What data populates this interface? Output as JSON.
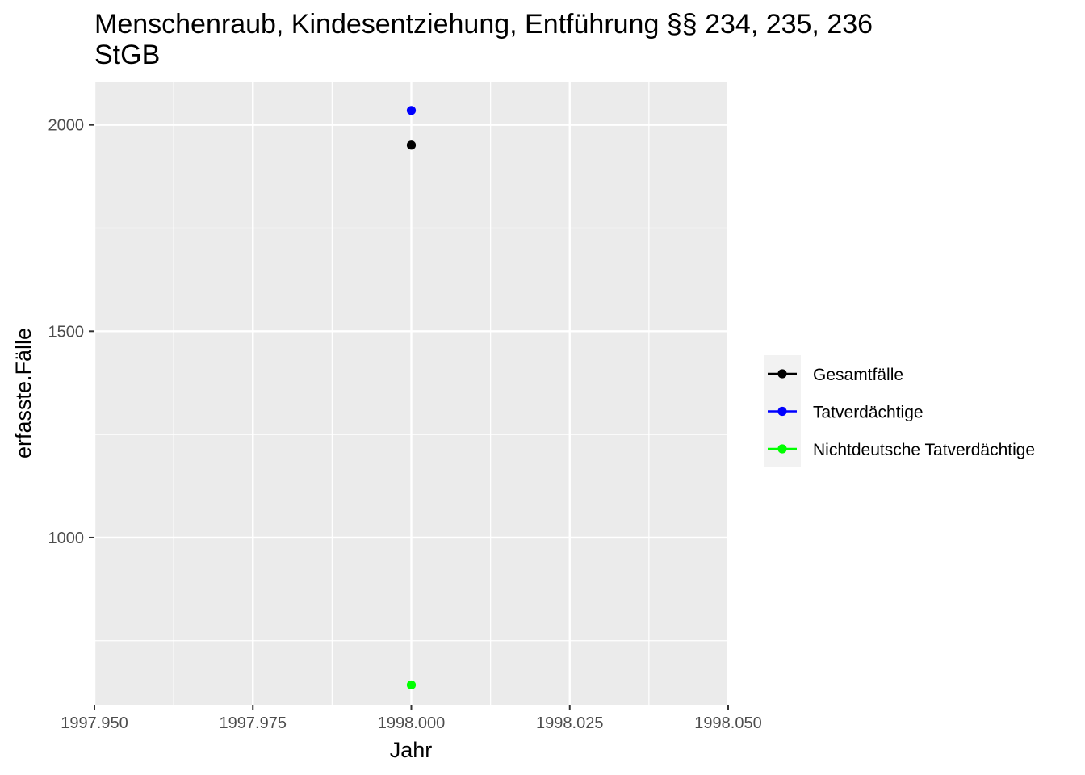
{
  "chart_data": {
    "type": "scatter",
    "title_lines": [
      "Menschenraub, Kindesentziehung, Entführung §§ 234, 235, 236",
      "StGB"
    ],
    "xlabel": "Jahr",
    "ylabel": "erfasste.Fälle",
    "xlim": [
      1997.95,
      1998.05
    ],
    "ylim": [
      595,
      2105
    ],
    "x_ticks": [
      1997.95,
      1997.975,
      1998.0,
      1998.025,
      1998.05
    ],
    "x_tick_labels": [
      "1997.950",
      "1997.975",
      "1998.000",
      "1998.025",
      "1998.050"
    ],
    "y_ticks": [
      1000,
      1500,
      2000
    ],
    "y_tick_labels": [
      "1000",
      "1500",
      "2000"
    ],
    "grid": true,
    "legend_position": "right",
    "series": [
      {
        "name": "Gesamtfälle",
        "color": "#000000",
        "points": [
          {
            "x": 1998.0,
            "y": 1951
          }
        ]
      },
      {
        "name": "Tatverdächtige",
        "color": "#0000ff",
        "points": [
          {
            "x": 1998.0,
            "y": 2035
          }
        ]
      },
      {
        "name": "Nichtdeutsche Tatverdächtige",
        "color": "#00ff00",
        "points": [
          {
            "x": 1998.0,
            "y": 643
          }
        ]
      }
    ]
  }
}
